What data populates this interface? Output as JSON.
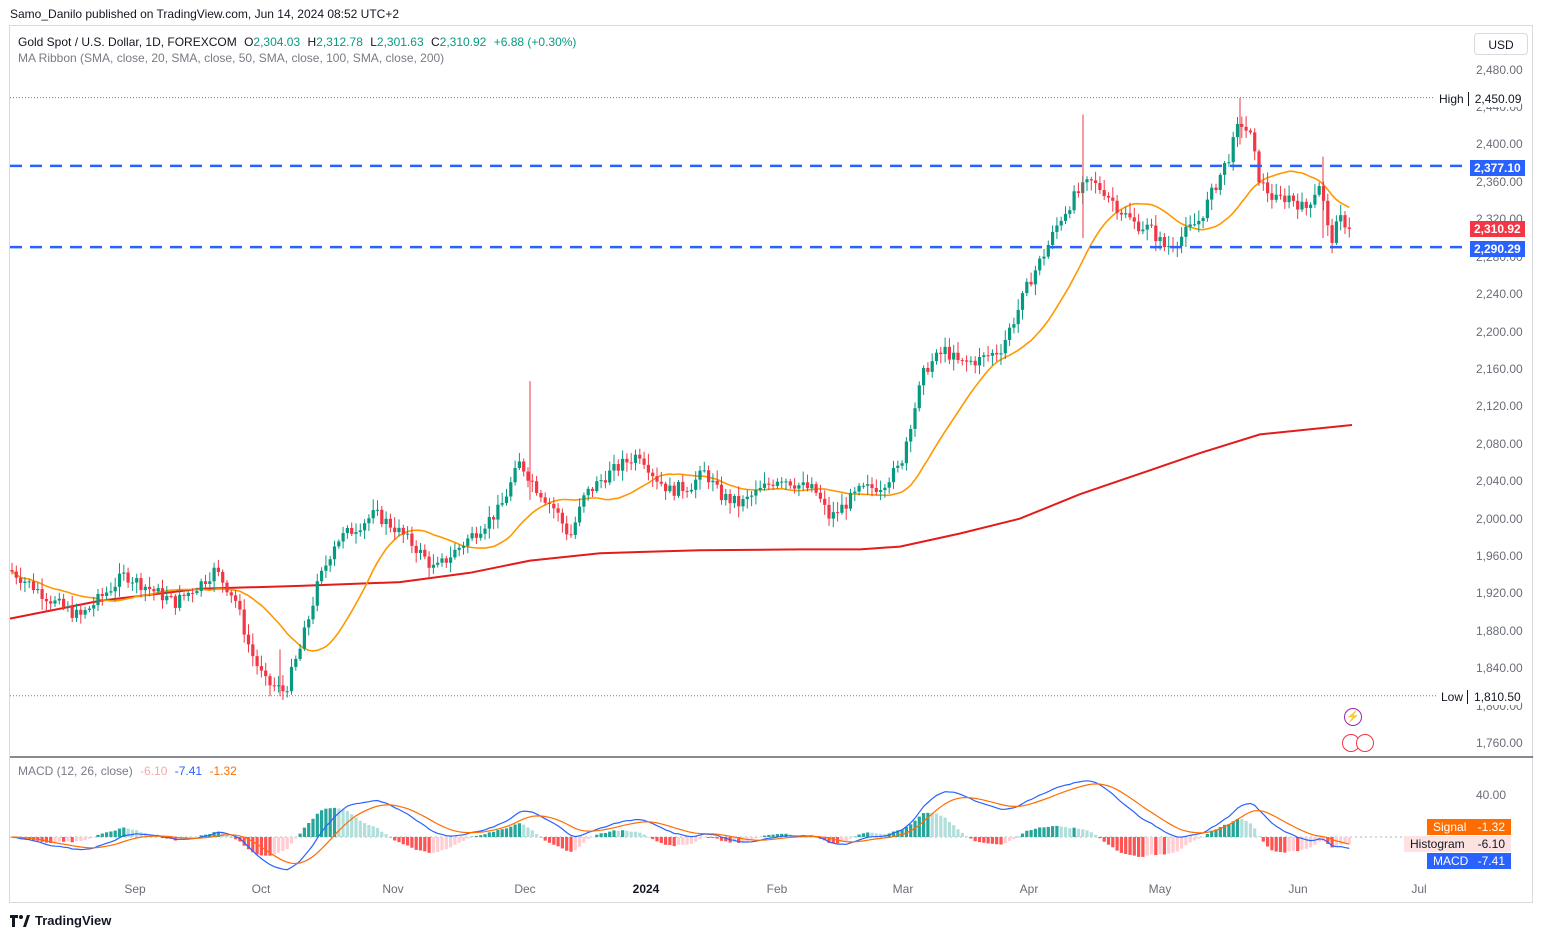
{
  "header": {
    "publisher": "Samo_Danilo published on TradingView.com, Jun 14, 2024 08:52 UTC+2"
  },
  "legend": {
    "title": "Gold Spot / U.S. Dollar, 1D, FOREXCOM",
    "o_label": "O",
    "o_value": "2,304.03",
    "h_label": "H",
    "h_value": "2,312.78",
    "l_label": "L",
    "l_value": "2,301.63",
    "c_label": "C",
    "c_value": "2,310.92",
    "change": "+6.88 (+0.30%)",
    "indicator": "MA Ribbon (SMA, close, 20, SMA, close, 50, SMA, close, 100, SMA, close, 200)"
  },
  "currency": "USD",
  "price_axis": [
    "2,480.00",
    "2,440.00",
    "2,400.00",
    "2,360.00",
    "2,320.00",
    "2,280.00",
    "2,240.00",
    "2,200.00",
    "2,160.00",
    "2,120.00",
    "2,080.00",
    "2,040.00",
    "2,000.00",
    "1,960.00",
    "1,920.00",
    "1,880.00",
    "1,840.00",
    "1,800.00",
    "1,760.00"
  ],
  "time_axis": [
    {
      "label": "Sep",
      "bold": false
    },
    {
      "label": "Oct",
      "bold": false
    },
    {
      "label": "Nov",
      "bold": false
    },
    {
      "label": "Dec",
      "bold": false
    },
    {
      "label": "2024",
      "bold": true
    },
    {
      "label": "Feb",
      "bold": false
    },
    {
      "label": "Mar",
      "bold": false
    },
    {
      "label": "Apr",
      "bold": false
    },
    {
      "label": "May",
      "bold": false
    },
    {
      "label": "Jun",
      "bold": false
    },
    {
      "label": "Jul",
      "bold": false
    }
  ],
  "high_marker": {
    "label": "High",
    "value": "2,450.09"
  },
  "low_marker": {
    "label": "Low",
    "value": "1,810.50"
  },
  "levels": {
    "resistance": "2,377.10",
    "current": "2,310.92",
    "support": "2,290.29",
    "colors": {
      "level": "#2962ff",
      "current": "#f23645"
    }
  },
  "macd_legend": {
    "title": "MACD (12, 26, close)",
    "hist": "-6.10",
    "macd": "-7.41",
    "signal": "-1.32"
  },
  "macd_axis": [
    "40.00"
  ],
  "macd_tags": {
    "signal_label": "Signal",
    "signal_value": "-1.32",
    "hist_label": "Histogram",
    "hist_value": "-6.10",
    "macd_label": "MACD",
    "macd_value": "-7.41"
  },
  "colors": {
    "up": "#089981",
    "down": "#f23645",
    "ma20": "#ff9800",
    "ma200": "#e31b1b",
    "macd": "#2962ff",
    "signal": "#ff6d00"
  },
  "footer": {
    "brand": "TradingView"
  },
  "chart_data": {
    "type": "candlestick",
    "symbol": "Gold Spot / U.S. Dollar, 1D",
    "y_range": [
      1740,
      2500
    ],
    "high": 2450.09,
    "low": 1810.5,
    "horizontal_levels": [
      2377.1,
      2290.29
    ],
    "ohlc_approx": [
      {
        "date": "2023-08",
        "close": 1940
      },
      {
        "date": "2023-09-01",
        "close": 1942
      },
      {
        "date": "2023-09-20",
        "close": 1930
      },
      {
        "date": "2023-10-05",
        "close": 1820
      },
      {
        "date": "2023-10-20",
        "close": 1980
      },
      {
        "date": "2023-11-10",
        "close": 1940
      },
      {
        "date": "2023-12-01",
        "close": 2070
      },
      {
        "date": "2023-12-13",
        "close": 1980
      },
      {
        "date": "2023-12-28",
        "close": 2065
      },
      {
        "date": "2024-01-15",
        "close": 2030
      },
      {
        "date": "2024-02-14",
        "close": 1990
      },
      {
        "date": "2024-03-08",
        "close": 2180
      },
      {
        "date": "2024-04-12",
        "close": 2344
      },
      {
        "date": "2024-05-02",
        "close": 2300
      },
      {
        "date": "2024-05-20",
        "close": 2425
      },
      {
        "date": "2024-06-07",
        "close": 2294
      },
      {
        "date": "2024-06-14",
        "open": 2304.03,
        "high": 2312.78,
        "low": 2301.63,
        "close": 2310.92
      }
    ],
    "ma_ribbon": [
      {
        "name": "SMA 20"
      },
      {
        "name": "SMA 200"
      }
    ],
    "macd": {
      "fast": 12,
      "slow": 26,
      "histogram": -6.1,
      "macd": -7.41,
      "signal": -1.32
    }
  }
}
